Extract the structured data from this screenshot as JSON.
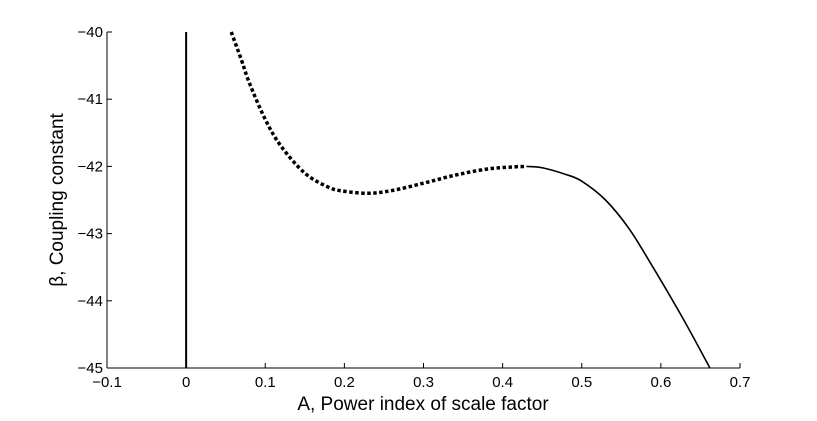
{
  "chart_data": {
    "type": "line",
    "title": "",
    "xlabel": "A, Power index of scale factor",
    "ylabel": "β, Coupling constant",
    "xlim": [
      -0.1,
      0.7
    ],
    "ylim": [
      -45,
      -40
    ],
    "xticks": [
      "−0.1",
      "0",
      "0.1",
      "0.2",
      "0.3",
      "0.4",
      "0.5",
      "0.6",
      "0.7"
    ],
    "yticks": [
      "−40",
      "−41",
      "−42",
      "−43",
      "−44",
      "−45"
    ],
    "grid": false,
    "legend": "none",
    "series": [
      {
        "style": "solid",
        "color": "#000000",
        "x": [
          0,
          0
        ],
        "y": [
          -45,
          -40
        ]
      },
      {
        "style": "dotted",
        "color": "#000000",
        "x": [
          0.057,
          0.07,
          0.08,
          0.1,
          0.12,
          0.15,
          0.18,
          0.2,
          0.23,
          0.26,
          0.3,
          0.34,
          0.38,
          0.41,
          0.43
        ],
        "y": [
          -40.0,
          -40.42,
          -40.76,
          -41.3,
          -41.7,
          -42.1,
          -42.31,
          -42.37,
          -42.4,
          -42.36,
          -42.25,
          -42.13,
          -42.04,
          -42.01,
          -42.0
        ]
      },
      {
        "style": "solid",
        "color": "#000000",
        "x": [
          0.43,
          0.45,
          0.48,
          0.5,
          0.53,
          0.56,
          0.59,
          0.62,
          0.64,
          0.662
        ],
        "y": [
          -42.0,
          -42.02,
          -42.12,
          -42.22,
          -42.5,
          -42.93,
          -43.5,
          -44.1,
          -44.52,
          -45.0
        ]
      }
    ]
  }
}
